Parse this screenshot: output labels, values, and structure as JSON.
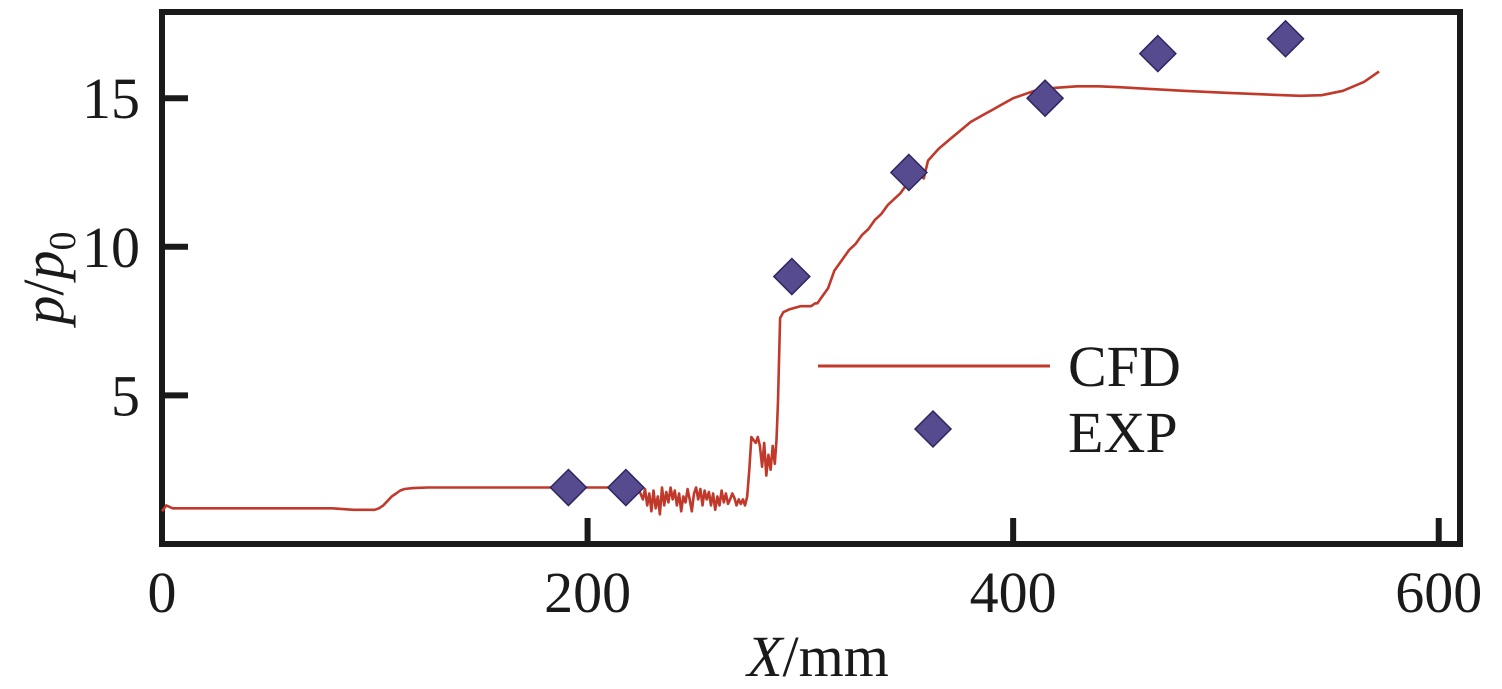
{
  "chart_data": {
    "type": "line+scatter",
    "title": "",
    "xlabel_italic": "X",
    "xlabel_rest": "/mm",
    "ylabel_p": "p",
    "ylabel_slash": "/",
    "ylabel_p0": "p",
    "ylabel_sub": "0",
    "xlim": [
      0,
      610
    ],
    "ylim": [
      0,
      17.9
    ],
    "xticks": [
      0,
      200,
      400,
      600
    ],
    "xtick_labels": [
      "0",
      "200",
      "400",
      "600"
    ],
    "yticks": [
      5,
      10,
      15
    ],
    "ytick_labels": [
      "5",
      "10",
      "15"
    ],
    "colors": {
      "cfd": "#c0392b",
      "exp_fill": "#574b90",
      "exp_edge": "#2e2660",
      "frame": "#1a1a1a"
    },
    "series": [
      {
        "name": "CFD",
        "kind": "line",
        "x": [
          0,
          2,
          5,
          10,
          20,
          40,
          60,
          80,
          90,
          100,
          102,
          104,
          106,
          108,
          110,
          112,
          114,
          118,
          125,
          140,
          160,
          180,
          200,
          210,
          220,
          224,
          226,
          227,
          228,
          229,
          230,
          231,
          232,
          233,
          234,
          235,
          236,
          237,
          238,
          239,
          240,
          241,
          242,
          243,
          244,
          245,
          246,
          247,
          248,
          249,
          250,
          251,
          252,
          253,
          254,
          255,
          256,
          257,
          258,
          259,
          260,
          261,
          262,
          263,
          264,
          265,
          266,
          267,
          268,
          269,
          270,
          271,
          272,
          273,
          274,
          275,
          276,
          277,
          278,
          279,
          280,
          281,
          282,
          283,
          284,
          285,
          286,
          287,
          288,
          288.8,
          289.5,
          290.5,
          292,
          295,
          300,
          305,
          307,
          308,
          310,
          313,
          316,
          320,
          323,
          326,
          329,
          332,
          335,
          338,
          341,
          344,
          347,
          350,
          352,
          355,
          358,
          360,
          365,
          370,
          375,
          380,
          385,
          390,
          395,
          400,
          410,
          420,
          430,
          440,
          450,
          460,
          480,
          500,
          520,
          535,
          545,
          555,
          565,
          572
        ],
        "y": [
          1.1,
          1.3,
          1.2,
          1.2,
          1.2,
          1.2,
          1.2,
          1.2,
          1.15,
          1.15,
          1.2,
          1.3,
          1.45,
          1.6,
          1.7,
          1.8,
          1.85,
          1.88,
          1.9,
          1.9,
          1.9,
          1.9,
          1.9,
          1.9,
          1.9,
          1.85,
          1.5,
          1.85,
          1.3,
          1.7,
          1.1,
          1.8,
          1.2,
          1.6,
          1.0,
          1.9,
          1.3,
          1.75,
          1.4,
          1.9,
          1.5,
          1.8,
          1.3,
          1.7,
          1.1,
          1.6,
          1.4,
          1.85,
          1.5,
          1.1,
          1.7,
          1.9,
          1.5,
          1.85,
          1.3,
          1.8,
          1.5,
          1.75,
          1.3,
          1.7,
          1.15,
          1.6,
          1.3,
          1.8,
          1.4,
          1.7,
          1.35,
          1.5,
          1.7,
          1.55,
          1.3,
          1.5,
          1.35,
          1.5,
          1.3,
          1.6,
          2.5,
          3.6,
          3.5,
          3.4,
          3.6,
          3.3,
          2.6,
          3.4,
          2.3,
          3.0,
          2.5,
          3.3,
          2.7,
          3.5,
          4.8,
          7.6,
          7.8,
          7.9,
          8.0,
          8.0,
          8.1,
          8.1,
          8.3,
          8.6,
          9.2,
          9.6,
          9.9,
          10.1,
          10.4,
          10.6,
          10.9,
          11.1,
          11.4,
          11.6,
          11.8,
          12.1,
          12.3,
          12.5,
          12.3,
          12.9,
          13.3,
          13.6,
          13.9,
          14.2,
          14.4,
          14.6,
          14.8,
          15.0,
          15.25,
          15.35,
          15.4,
          15.4,
          15.37,
          15.33,
          15.25,
          15.18,
          15.12,
          15.08,
          15.1,
          15.25,
          15.55,
          15.9
        ]
      },
      {
        "name": "EXP",
        "kind": "scatter",
        "marker": "diamond",
        "x": [
          191,
          218,
          296,
          351,
          415,
          468,
          528
        ],
        "y": [
          1.9,
          1.9,
          9.0,
          12.5,
          15.0,
          16.5,
          17.0
        ]
      }
    ],
    "legend": {
      "position": "center-right",
      "entries": [
        "CFD",
        "EXP"
      ]
    }
  }
}
